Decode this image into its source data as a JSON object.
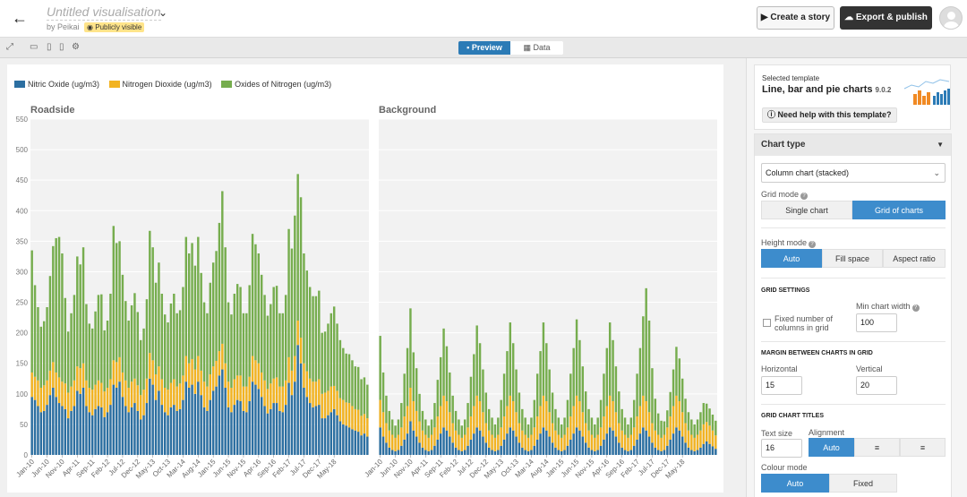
{
  "header": {
    "title": "Untitled visualisation",
    "byline": "by Peikai",
    "visibility_badge": "Publicly visible",
    "story_button": "Create a story",
    "export_button": "Export & publish"
  },
  "toolbar": {
    "preview_tab": "Preview",
    "data_tab": "Data"
  },
  "legend": [
    {
      "label": "Nitric Oxide (ug/m3)",
      "color": "#2c6fa1"
    },
    {
      "label": "Nitrogen Dioxide (ug/m3)",
      "color": "#f2b321"
    },
    {
      "label": "Oxides of Nitrogen (ug/m3)",
      "color": "#76ad4e"
    }
  ],
  "chart_data": [
    {
      "type": "bar",
      "stacked": true,
      "title": "Roadside",
      "ylim": [
        0,
        550
      ],
      "yticks": [
        0,
        50,
        100,
        150,
        200,
        250,
        300,
        350,
        400,
        450,
        500,
        550
      ],
      "x_tick_labels": [
        "Jan-10",
        "Jun-10",
        "Nov-10",
        "Apr-11",
        "Sep-11",
        "Feb-12",
        "Jul-12",
        "Dec-12",
        "May-13",
        "Oct-13",
        "Mar-14",
        "Aug-14",
        "Jan-15",
        "Jun-15",
        "Nov-15",
        "Apr-16",
        "Sep-16",
        "Feb-17",
        "Jul-17",
        "Dec-17",
        "May-18"
      ],
      "categories_note": "monthly, Jan-10 to Oct-18",
      "grid": true,
      "series": [
        {
          "name": "Nitric Oxide (ug/m3)",
          "values": [
            95,
            90,
            80,
            70,
            72,
            82,
            98,
            110,
            95,
            85,
            80,
            75,
            60,
            72,
            80,
            105,
            100,
            110,
            80,
            70,
            65,
            75,
            80,
            78,
            62,
            70,
            82,
            115,
            110,
            120,
            95,
            80,
            70,
            78,
            85,
            72,
            58,
            65,
            85,
            125,
            115,
            90,
            105,
            82,
            70,
            65,
            78,
            82,
            72,
            75,
            90,
            120,
            110,
            115,
            100,
            120,
            98,
            78,
            72,
            90,
            105,
            112,
            130,
            140,
            110,
            78,
            70,
            82,
            90,
            88,
            72,
            70,
            88,
            120,
            115,
            108,
            95,
            80,
            68,
            75,
            85,
            85,
            72,
            70,
            82,
            118,
            98,
            120,
            180,
            150,
            110,
            95,
            85,
            78,
            80,
            82,
            60,
            60,
            65,
            70,
            75,
            65,
            55,
            50,
            48,
            45,
            42,
            40,
            38,
            32,
            35,
            30
          ]
        },
        {
          "name": "Nitrogen Dioxide (ug/m3)",
          "values": [
            40,
            38,
            42,
            40,
            42,
            40,
            40,
            42,
            40,
            42,
            40,
            42,
            42,
            40,
            42,
            40,
            42,
            40,
            42,
            40,
            42,
            40,
            42,
            40,
            42,
            40,
            42,
            40,
            42,
            40,
            40,
            42,
            40,
            42,
            40,
            42,
            40,
            42,
            40,
            42,
            40,
            42,
            40,
            42,
            40,
            42,
            40,
            42,
            40,
            42,
            40,
            42,
            40,
            42,
            40,
            42,
            40,
            42,
            40,
            42,
            40,
            42,
            40,
            42,
            40,
            42,
            40,
            42,
            40,
            42,
            40,
            42,
            40,
            42,
            40,
            42,
            40,
            42,
            40,
            42,
            40,
            42,
            40,
            42,
            40,
            42,
            40,
            42,
            40,
            42,
            40,
            42,
            40,
            42,
            40,
            42,
            40,
            42,
            40,
            42,
            38,
            40,
            38,
            40,
            38,
            40,
            38,
            35,
            36,
            32,
            32,
            30
          ]
        },
        {
          "name": "Oxides of Nitrogen (ug/m3)",
          "values": [
            200,
            150,
            120,
            100,
            105,
            120,
            155,
            190,
            220,
            230,
            210,
            140,
            100,
            120,
            140,
            180,
            170,
            190,
            125,
            105,
            100,
            120,
            140,
            145,
            100,
            110,
            140,
            220,
            195,
            190,
            160,
            130,
            110,
            125,
            140,
            120,
            90,
            100,
            130,
            200,
            185,
            150,
            170,
            140,
            120,
            110,
            130,
            140,
            120,
            120,
            145,
            195,
            180,
            190,
            170,
            195,
            160,
            130,
            120,
            150,
            170,
            180,
            210,
            250,
            190,
            130,
            120,
            140,
            150,
            145,
            120,
            120,
            150,
            200,
            190,
            180,
            160,
            140,
            120,
            130,
            150,
            150,
            120,
            120,
            140,
            210,
            200,
            230,
            240,
            230,
            180,
            165,
            150,
            140,
            140,
            145,
            100,
            100,
            110,
            120,
            130,
            110,
            95,
            85,
            80,
            80,
            75,
            70,
            70,
            60,
            60,
            55
          ]
        }
      ]
    },
    {
      "type": "bar",
      "stacked": true,
      "title": "Background",
      "ylim": [
        0,
        550
      ],
      "x_tick_labels": [
        "Jan-10",
        "Jun-10",
        "Nov-10",
        "Apr-11",
        "Sep-11",
        "Feb-12",
        "Jul-12",
        "Dec-12",
        "May-13",
        "Oct-13",
        "Mar-14",
        "Aug-14",
        "Jan-15",
        "Jun-15",
        "Nov-15",
        "Apr-16",
        "Sep-16",
        "Feb-17",
        "Jul-17",
        "Dec-17",
        "May-18"
      ],
      "grid": true,
      "series": [
        {
          "name": "Nitric Oxide (ug/m3)",
          "values": [
            45,
            30,
            20,
            12,
            8,
            6,
            8,
            15,
            25,
            35,
            55,
            40,
            30,
            20,
            12,
            8,
            6,
            8,
            15,
            25,
            35,
            45,
            40,
            30,
            20,
            12,
            8,
            6,
            8,
            15,
            25,
            35,
            45,
            40,
            30,
            20,
            12,
            8,
            6,
            8,
            15,
            25,
            35,
            45,
            40,
            30,
            20,
            12,
            8,
            6,
            8,
            15,
            25,
            35,
            45,
            40,
            30,
            20,
            12,
            8,
            6,
            8,
            15,
            25,
            35,
            45,
            40,
            30,
            20,
            12,
            8,
            6,
            8,
            15,
            25,
            35,
            45,
            40,
            30,
            20,
            12,
            8,
            6,
            8,
            15,
            25,
            35,
            45,
            40,
            30,
            20,
            12,
            8,
            6,
            8,
            15,
            25,
            35,
            45,
            40,
            30,
            20,
            12,
            8,
            6,
            8,
            12,
            18,
            22,
            18,
            14,
            10
          ]
        },
        {
          "name": "Nitrogen Dioxide (ug/m3)",
          "values": [
            45,
            40,
            32,
            28,
            25,
            22,
            25,
            30,
            38,
            45,
            55,
            48,
            42,
            35,
            28,
            25,
            22,
            25,
            30,
            38,
            45,
            52,
            48,
            40,
            32,
            28,
            25,
            22,
            25,
            30,
            38,
            45,
            52,
            48,
            40,
            32,
            28,
            25,
            22,
            25,
            30,
            38,
            45,
            52,
            48,
            40,
            32,
            28,
            25,
            22,
            25,
            30,
            38,
            45,
            52,
            48,
            40,
            32,
            28,
            25,
            22,
            25,
            30,
            38,
            45,
            52,
            48,
            40,
            32,
            28,
            25,
            22,
            25,
            30,
            38,
            45,
            52,
            48,
            40,
            32,
            28,
            25,
            22,
            25,
            30,
            38,
            45,
            52,
            48,
            40,
            32,
            28,
            25,
            22,
            25,
            30,
            38,
            45,
            52,
            48,
            40,
            32,
            28,
            25,
            22,
            25,
            28,
            32,
            32,
            30,
            26,
            22
          ]
        },
        {
          "name": "Oxides of Nitrogen (ug/m3)",
          "values": [
            105,
            65,
            45,
            32,
            25,
            20,
            25,
            40,
            70,
            95,
            130,
            80,
            70,
            45,
            32,
            25,
            20,
            25,
            40,
            60,
            80,
            110,
            90,
            65,
            45,
            32,
            25,
            20,
            25,
            40,
            65,
            85,
            115,
            95,
            70,
            50,
            35,
            28,
            22,
            28,
            45,
            70,
            90,
            120,
            95,
            70,
            50,
            35,
            28,
            22,
            28,
            45,
            70,
            90,
            120,
            95,
            70,
            50,
            35,
            28,
            22,
            28,
            45,
            70,
            95,
            125,
            100,
            75,
            52,
            35,
            28,
            22,
            28,
            45,
            70,
            95,
            120,
            100,
            75,
            52,
            35,
            28,
            22,
            28,
            45,
            70,
            95,
            130,
            185,
            150,
            90,
            52,
            35,
            28,
            22,
            28,
            40,
            60,
            80,
            70,
            55,
            40,
            30,
            25,
            22,
            25,
            30,
            35,
            30,
            28,
            26,
            24
          ]
        }
      ]
    }
  ],
  "panel": {
    "template_label": "Selected template",
    "template_name": "Line, bar and pie charts",
    "template_version": "9.0.2",
    "help_button": "Need help with this template?",
    "section_title": "Chart type",
    "chart_type_value": "Column chart (stacked)",
    "grid_mode_label": "Grid mode",
    "grid_mode_options": [
      "Single chart",
      "Grid of charts"
    ],
    "height_mode_label": "Height mode",
    "height_mode_options": [
      "Auto",
      "Fill space",
      "Aspect ratio"
    ],
    "grid_settings_head": "GRID SETTINGS",
    "fixed_columns_label": "Fixed number of columns in grid",
    "min_width_label": "Min chart width",
    "min_width_value": "100",
    "margin_head": "MARGIN BETWEEN CHARTS IN GRID",
    "horizontal_label": "Horizontal",
    "horizontal_value": "15",
    "vertical_label": "Vertical",
    "vertical_value": "20",
    "grid_titles_head": "GRID CHART TITLES",
    "text_size_label": "Text size",
    "text_size_value": "16",
    "alignment_label": "Alignment",
    "alignment_options": [
      "Auto"
    ],
    "colour_mode_label": "Colour mode",
    "colour_mode_options": [
      "Auto",
      "Fixed"
    ]
  }
}
